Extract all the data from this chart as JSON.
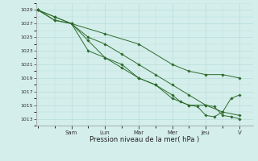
{
  "title": "",
  "xlabel": "Pression niveau de la mer( hPa )",
  "ylim": [
    1012,
    1030
  ],
  "yticks": [
    1013,
    1015,
    1017,
    1019,
    1021,
    1023,
    1025,
    1027,
    1029
  ],
  "bg_color": "#d4eeeb",
  "grid_color": "#b8ddd9",
  "line_color": "#2d6b2d",
  "marker_color": "#2d6b2d",
  "day_labels": [
    "Sam",
    "Lun",
    "Mar",
    "Mer",
    "Jeu",
    "V"
  ],
  "day_positions": [
    2.0,
    4.0,
    6.0,
    8.0,
    10.0,
    12.0
  ],
  "xlim": [
    -0.1,
    12.8
  ],
  "lines": [
    {
      "x": [
        0,
        1,
        2,
        4,
        6,
        8,
        9,
        10,
        11,
        12
      ],
      "y": [
        1029,
        1028,
        1027,
        1025.5,
        1024,
        1021,
        1020,
        1019.5,
        1019.5,
        1019
      ]
    },
    {
      "x": [
        0,
        1,
        2,
        3,
        4,
        5,
        6,
        7,
        8,
        9,
        10,
        11,
        12
      ],
      "y": [
        1029,
        1028,
        1027,
        1025,
        1024,
        1022.5,
        1021,
        1019.5,
        1018,
        1016.5,
        1015,
        1014,
        1013.5
      ]
    },
    {
      "x": [
        0,
        1,
        2,
        3,
        4,
        5,
        6,
        7,
        8,
        9,
        10,
        10.5,
        11,
        11.5,
        12
      ],
      "y": [
        1029,
        1027.5,
        1027,
        1023,
        1022,
        1020.5,
        1019,
        1018,
        1016,
        1015,
        1015,
        1014.8,
        1013.5,
        1013.3,
        1013
      ]
    },
    {
      "x": [
        0,
        1,
        2,
        3,
        4,
        5,
        6,
        7,
        8,
        8.5,
        9,
        9.5,
        10,
        10.5,
        11,
        11.5,
        12
      ],
      "y": [
        1029,
        1027.5,
        1027,
        1024.5,
        1022,
        1021,
        1019,
        1018,
        1016.5,
        1015.5,
        1015,
        1014.8,
        1013.5,
        1013.3,
        1014.0,
        1016.0,
        1016.5
      ]
    }
  ]
}
